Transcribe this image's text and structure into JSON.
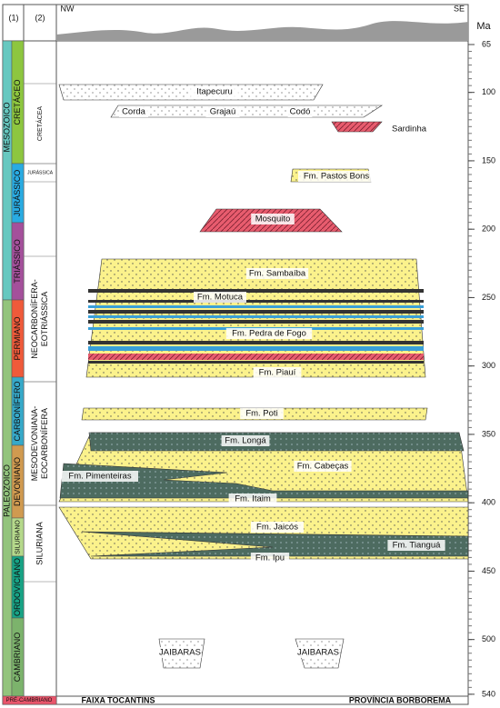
{
  "header": {
    "col1": "(1)",
    "col2": "(2)",
    "nw": "NW",
    "se": "SE",
    "unit": "Ma"
  },
  "axis": {
    "ticks": [
      65,
      100,
      150,
      200,
      250,
      300,
      350,
      400,
      450,
      500,
      540
    ]
  },
  "eras": [
    "MESOZOICO",
    "PALEOZOICO"
  ],
  "periods": [
    "CRETÁCEO",
    "JURÁSSICO",
    "TRIÁSSICO",
    "PERMIANO",
    "CARBONÍFERO",
    "DEVONIANO",
    "SILURIANO",
    "ORDOVICIANO",
    "CAMBRIANO",
    "PRÉ-CAMBRIANO"
  ],
  "sequences": [
    [
      "CRETÁCEA"
    ],
    [
      "JURÁSSICA"
    ],
    [
      "NEOCARBONÍFERA-",
      "EOTRIÁSSICA"
    ],
    [
      "MESODEVONIANA-",
      "EOCARBONÍFERA"
    ],
    [
      "SILURIANA"
    ]
  ],
  "formations": [
    "Itapecuru",
    "Corda",
    "Grajaú",
    "Codó",
    "Sardinha",
    "Fm. Pastos Bons",
    "Mosquito",
    "Fm. Sambaíba",
    "Fm. Motuca",
    "Fm. Pedra de Fogo",
    "Fm. Piauí",
    "Fm. Poti",
    "Fm. Longá",
    "Fm. Cabeças",
    "Fm. Pimenteiras",
    "Fm. Itaim",
    "Fm. Jaicós",
    "Fm. Tianguá",
    "Fm. Ipu",
    "JAIBARAS",
    "JAIBARAS"
  ],
  "provinces": [
    "FAIXA TOCANTINS",
    "PROVÍNCIA BORBOREMA"
  ]
}
